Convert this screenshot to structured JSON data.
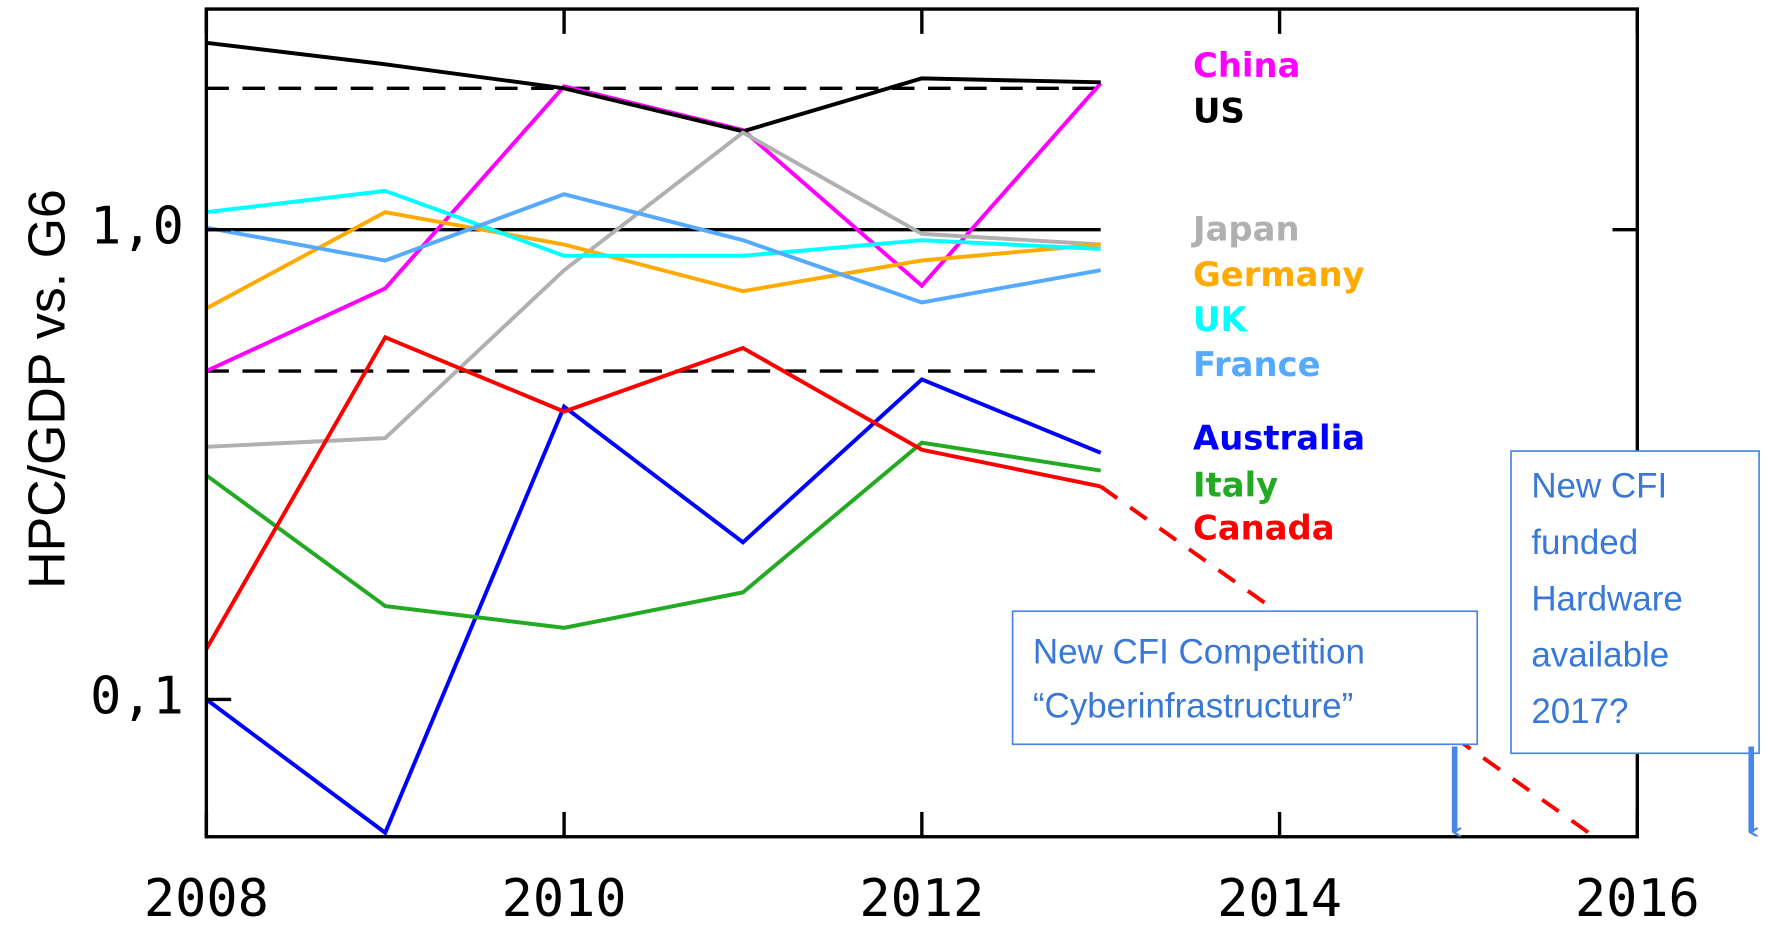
{
  "chart_data": {
    "type": "line",
    "y_label": "HPC/GDP vs. G6",
    "log_y": true,
    "x": [
      2008,
      2009,
      2010,
      2011,
      2012,
      2013
    ],
    "xlim": [
      2008,
      2016
    ],
    "xticks": [
      2008,
      2010,
      2012,
      2014,
      2016
    ],
    "ylim": [
      0.051,
      2.95
    ],
    "yticks": [
      {
        "value": 0.1,
        "label": "0,1"
      },
      {
        "value": 1,
        "label": "1,0"
      }
    ],
    "reference_lines": [
      {
        "value": 2,
        "style": "dashed"
      },
      {
        "value": 1,
        "style": "solid"
      },
      {
        "value": 0.5,
        "style": "dashed"
      }
    ],
    "series": [
      {
        "name": "China",
        "color": "#ff00ff",
        "values": [
          0.5,
          0.75,
          2.02,
          1.63,
          0.76,
          2.05
        ]
      },
      {
        "name": "US",
        "color": "#000000",
        "values": [
          2.5,
          2.25,
          2.0,
          1.62,
          2.1,
          2.06
        ]
      },
      {
        "name": "Japan",
        "color": "#b0b0b0",
        "values": [
          0.345,
          0.36,
          0.82,
          1.61,
          0.98,
          0.93
        ]
      },
      {
        "name": "Germany",
        "color": "#ffaa00",
        "values": [
          0.68,
          1.09,
          0.93,
          0.74,
          0.86,
          0.93
        ]
      },
      {
        "name": "UK",
        "color": "#00ffff",
        "values": [
          1.09,
          1.21,
          0.88,
          0.88,
          0.95,
          0.91
        ]
      },
      {
        "name": "France",
        "color": "#55aaff",
        "values": [
          1.01,
          0.86,
          1.19,
          0.95,
          0.7,
          0.82
        ]
      },
      {
        "name": "Australia",
        "color": "#0000ff",
        "values": [
          0.1,
          0.052,
          0.42,
          0.216,
          0.48,
          0.335
        ]
      },
      {
        "name": "Italy",
        "color": "#22aa22",
        "values": [
          0.3,
          0.158,
          0.142,
          0.169,
          0.352,
          0.307
        ]
      },
      {
        "name": "Canada",
        "color": "#ff0000",
        "values": [
          0.128,
          0.59,
          0.41,
          0.56,
          0.34,
          0.284
        ]
      }
    ],
    "projection": {
      "color": "#ff0000",
      "x": [
        2013,
        2015.76
      ],
      "values": [
        0.284,
        0.051
      ]
    },
    "annotations": [
      {
        "lines": [
          "New CFI Competition",
          "“Cyberinfrastructure”"
        ]
      },
      {
        "lines": [
          "New CFI",
          "funded",
          "Hardware",
          "available",
          "2017?"
        ]
      }
    ]
  }
}
